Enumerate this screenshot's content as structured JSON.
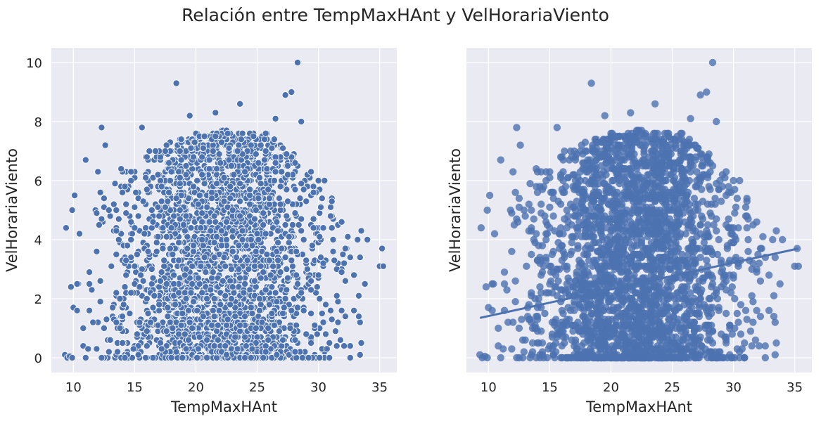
{
  "figure": {
    "title": "Relación entre TempMaxHAnt y VelHorariaViento"
  },
  "colors": {
    "point": "#4c72b0",
    "panel": "#eaeaf2",
    "grid": "#ffffff",
    "edge": "#ffffff"
  },
  "chart_data": [
    {
      "type": "scatter",
      "title": "",
      "xlabel": "TempMaxHAnt",
      "ylabel": "VelHorariaViento",
      "xlim": [
        8.2,
        36.4
      ],
      "ylim": [
        -0.5,
        10.5
      ],
      "xticks": [
        10,
        15,
        20,
        25,
        30,
        35
      ],
      "yticks": [
        0,
        2,
        4,
        6,
        8,
        10
      ],
      "xtick_labels": [
        "10",
        "15",
        "20",
        "25",
        "30",
        "35"
      ],
      "ytick_labels": [
        "0",
        "2",
        "4",
        "6",
        "8",
        "10"
      ],
      "grid": true,
      "marker": "circle-white-edge",
      "outliers": [
        {
          "x": 28.3,
          "y": 10.0
        },
        {
          "x": 18.4,
          "y": 9.3
        },
        {
          "x": 23.6,
          "y": 8.6
        },
        {
          "x": 27.8,
          "y": 9.0
        },
        {
          "x": 27.3,
          "y": 8.9
        },
        {
          "x": 21.6,
          "y": 8.3
        },
        {
          "x": 19.5,
          "y": 8.2
        },
        {
          "x": 26.5,
          "y": 8.1
        },
        {
          "x": 12.3,
          "y": 7.8
        },
        {
          "x": 15.6,
          "y": 7.8
        },
        {
          "x": 28.6,
          "y": 8.0
        },
        {
          "x": 9.3,
          "y": 0.1
        },
        {
          "x": 9.5,
          "y": 0.0
        },
        {
          "x": 9.7,
          "y": 0.05
        },
        {
          "x": 9.9,
          "y": 0.0
        },
        {
          "x": 9.4,
          "y": 4.4
        },
        {
          "x": 9.8,
          "y": 2.4
        },
        {
          "x": 10.0,
          "y": 1.7
        },
        {
          "x": 10.3,
          "y": 1.6
        },
        {
          "x": 10.1,
          "y": 5.5
        },
        {
          "x": 9.9,
          "y": 5.0
        },
        {
          "x": 10.5,
          "y": 4.2
        },
        {
          "x": 11.0,
          "y": 6.7
        },
        {
          "x": 12.0,
          "y": 6.3
        },
        {
          "x": 12.6,
          "y": 7.2
        },
        {
          "x": 34.0,
          "y": 4.0
        },
        {
          "x": 35.2,
          "y": 3.7
        },
        {
          "x": 35.0,
          "y": 3.1
        },
        {
          "x": 35.3,
          "y": 3.1
        },
        {
          "x": 33.5,
          "y": 4.3
        },
        {
          "x": 32.6,
          "y": 0.0
        },
        {
          "x": 33.8,
          "y": 2.5
        }
      ],
      "density": {
        "description": "dense cloud of points",
        "x_center": 22.0,
        "x_spread": 4.3,
        "y_max_by_x": [
          {
            "x": 10,
            "y": 4.6
          },
          {
            "x": 12,
            "y": 5.8
          },
          {
            "x": 14,
            "y": 6.6
          },
          {
            "x": 16,
            "y": 7.0
          },
          {
            "x": 18,
            "y": 7.3
          },
          {
            "x": 20,
            "y": 7.6
          },
          {
            "x": 22,
            "y": 7.7
          },
          {
            "x": 24,
            "y": 7.6
          },
          {
            "x": 26,
            "y": 7.6
          },
          {
            "x": 28,
            "y": 7.0
          },
          {
            "x": 30,
            "y": 6.3
          },
          {
            "x": 32,
            "y": 5.0
          },
          {
            "x": 33.5,
            "y": 4.0
          }
        ]
      }
    },
    {
      "type": "scatter",
      "title": "",
      "xlabel": "TempMaxHAnt",
      "ylabel": "VelHorariaViento",
      "xlim": [
        8.2,
        36.4
      ],
      "ylim": [
        -0.5,
        10.5
      ],
      "xticks": [
        10,
        15,
        20,
        25,
        30,
        35
      ],
      "yticks": [
        0,
        2,
        4,
        6,
        8,
        10
      ],
      "xtick_labels": [
        "10",
        "15",
        "20",
        "25",
        "30",
        "35"
      ],
      "ytick_labels": [],
      "grid": true,
      "marker": "circle-alpha",
      "regression_line": {
        "x": [
          9.3,
          35.3
        ],
        "y": [
          1.35,
          3.7
        ]
      },
      "same_points_as_left": true
    }
  ]
}
